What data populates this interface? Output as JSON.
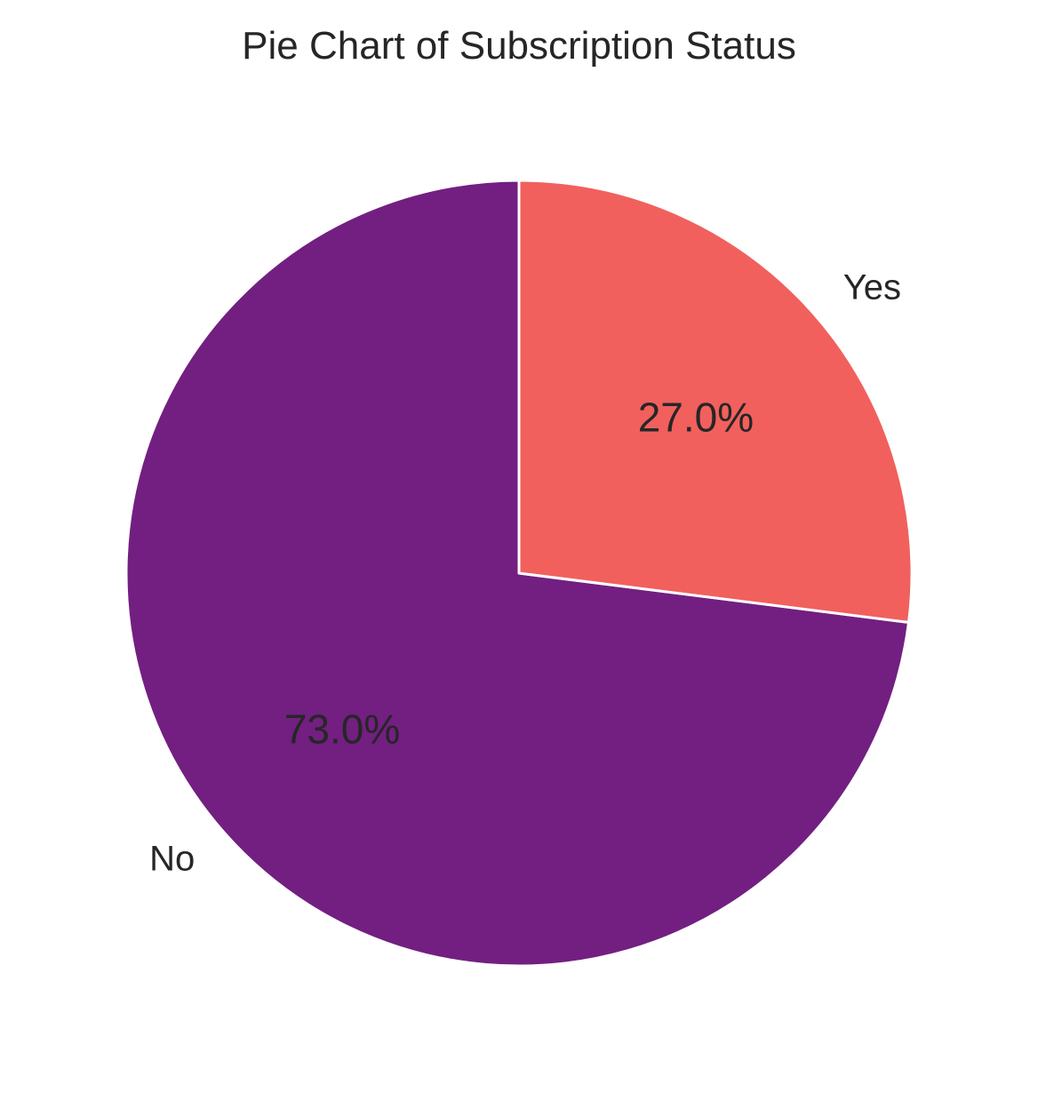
{
  "chart_data": {
    "type": "pie",
    "title": "Pie Chart of Subscription Status",
    "categories": [
      "No",
      "Yes"
    ],
    "values": [
      73.0,
      27.0
    ],
    "value_labels": [
      "73.0%",
      "27.0%"
    ],
    "colors": [
      "#721f81",
      "#f1605d"
    ],
    "start_angle_deg": 90,
    "direction": "counterclockwise",
    "wedge_edge_color": "#ffffff",
    "legend": "none"
  }
}
